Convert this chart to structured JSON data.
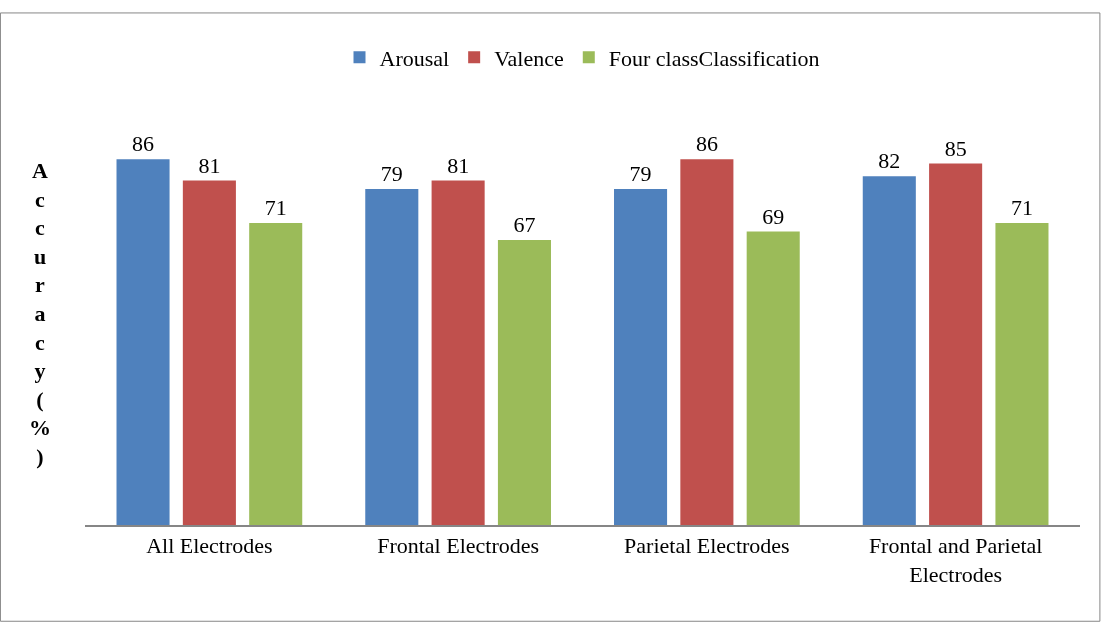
{
  "chart_data": {
    "type": "bar",
    "ylabel": "Accuracy(%)",
    "categories": [
      "All Electrodes",
      "Frontal Electrodes",
      "Parietal Electrodes",
      "Frontal and Parietal Electrodes"
    ],
    "series": [
      {
        "name": "Arousal",
        "color": "#4f81bd",
        "values": [
          86,
          79,
          79,
          82
        ]
      },
      {
        "name": "Valence",
        "color": "#c0504d",
        "values": [
          81,
          81,
          86,
          85
        ]
      },
      {
        "name": "Four classClassification",
        "color": "#9bbb59",
        "values": [
          71,
          67,
          69,
          71
        ]
      }
    ],
    "tick_labels": "x",
    "data_labels": true,
    "legend": "top"
  }
}
